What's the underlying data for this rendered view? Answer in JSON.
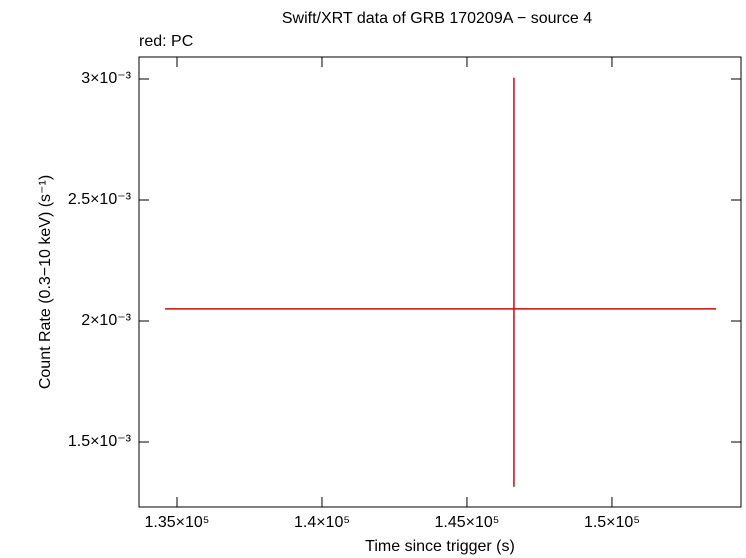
{
  "chart_data": {
    "type": "errorbar",
    "title": "Swift/XRT data of GRB 170209A − source 4",
    "legend_text": "red: PC",
    "x_label": "Time since trigger (s)",
    "y_label": "Count Rate (0.3−10 keV) (s⁻¹)",
    "xlim": [
      133690,
      154450
    ],
    "ylim": [
      0.0012314,
      0.0030909
    ],
    "xticks": [
      {
        "value": 135000,
        "label": "1.35×10⁵"
      },
      {
        "value": 140000,
        "label": "1.4×10⁵"
      },
      {
        "value": 145000,
        "label": "1.45×10⁵"
      },
      {
        "value": 150000,
        "label": "1.5×10⁵"
      }
    ],
    "yticks": [
      {
        "value": 0.0015,
        "label": "1.5×10⁻³"
      },
      {
        "value": 0.002,
        "label": "2×10⁻³"
      },
      {
        "value": 0.0025,
        "label": "2.5×10⁻³"
      },
      {
        "value": 0.003,
        "label": "3×10⁻³"
      }
    ],
    "series": [
      {
        "name": "PC",
        "color": "#e00000",
        "x": [
          146620
        ],
        "xerr_minus": [
          12030
        ],
        "xerr_plus": [
          6970
        ],
        "values": [
          0.00205
        ],
        "yerr_minus": [
          0.000735
        ],
        "yerr_plus": [
          0.000955
        ]
      }
    ]
  }
}
